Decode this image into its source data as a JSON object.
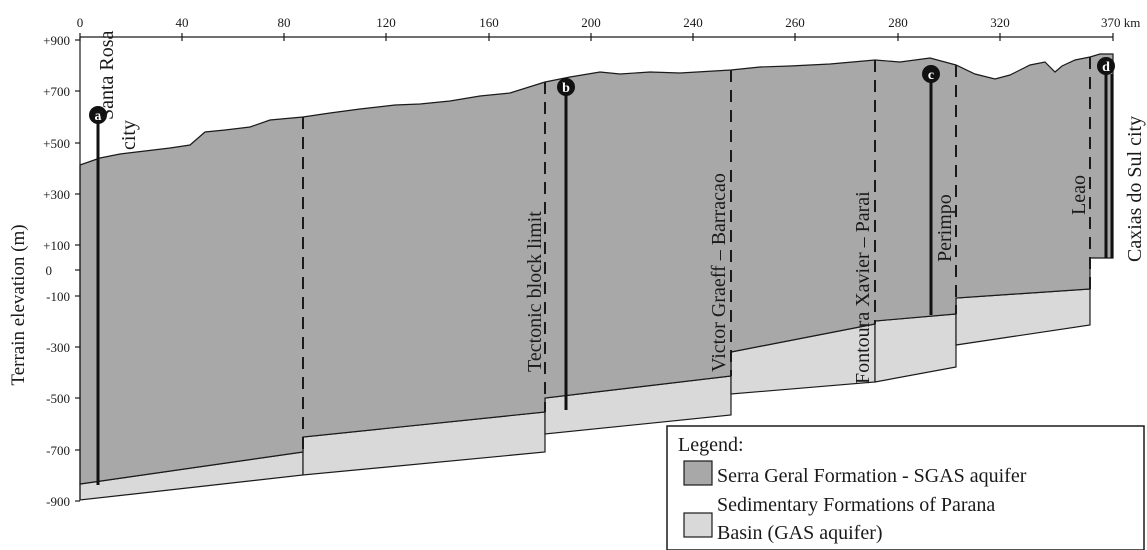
{
  "axes": {
    "x_ticks": [
      "0",
      "40",
      "80",
      "120",
      "160",
      "200",
      "240",
      "260",
      "280",
      "320",
      "370 km"
    ],
    "y_ticks": [
      "+900",
      "+700",
      "+500",
      "+300",
      "+100",
      "0",
      "-100",
      "-300",
      "-500",
      "-700",
      "-900"
    ],
    "y_title": "Terrain elevation (m)"
  },
  "cities": {
    "left": [
      "Santa Rosa",
      "city"
    ],
    "right": "Caxias do Sul city"
  },
  "wells": [
    {
      "label": "a"
    },
    {
      "label": "b"
    },
    {
      "label": "c"
    },
    {
      "label": "d"
    }
  ],
  "faults": [
    {
      "label": "Tectonic block limit"
    },
    {
      "label": "Victor Graeff – Barracao"
    },
    {
      "label": "Fontoura Xavier – Parai"
    },
    {
      "label": "Perimpo"
    },
    {
      "label": "Leao"
    }
  ],
  "legend": {
    "title": "Legend:",
    "items": [
      {
        "lines": [
          "Serra Geral Formation - SGAS aquifer"
        ],
        "color": "#a8a8a8"
      },
      {
        "lines": [
          "Sedimentary Formations of Parana",
          "Basin (GAS aquifer)"
        ],
        "color": "#d9d9d9"
      }
    ]
  },
  "colors": {
    "sgas": "#a8a8a8",
    "gas": "#d9d9d9",
    "line": "#1a1a1a",
    "well_marker": "#111111"
  }
}
